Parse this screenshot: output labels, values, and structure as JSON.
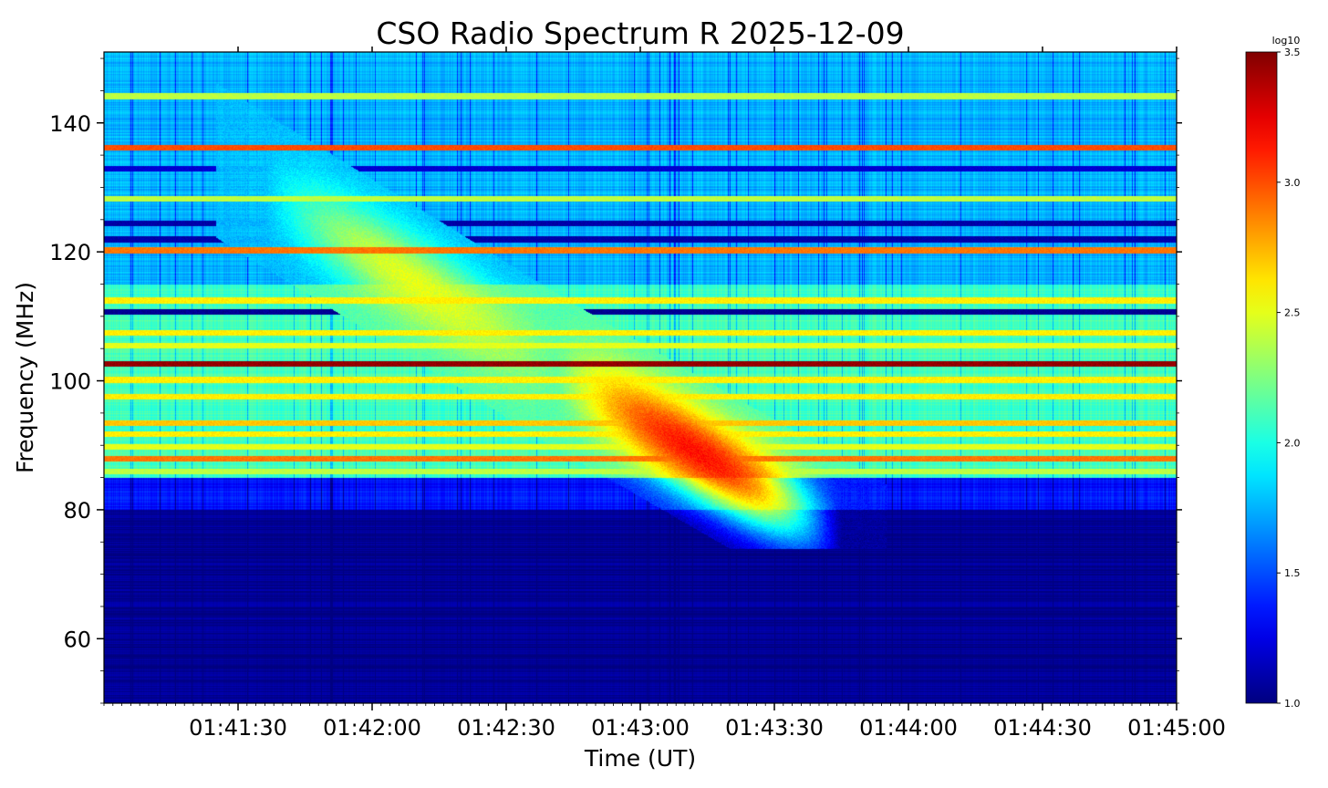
{
  "chart_data": {
    "type": "heatmap",
    "title": "CSO Radio Spectrum R 2025-12-09",
    "xlabel": "Time (UT)",
    "ylabel": "Frequency (MHz)",
    "x_tick_labels": [
      "01:41:30",
      "01:42:00",
      "01:42:30",
      "01:43:00",
      "01:43:30",
      "01:44:00",
      "01:44:30",
      "01:45:00"
    ],
    "x_range": [
      "01:41:00",
      "01:45:00"
    ],
    "y_ticks": [
      60,
      80,
      100,
      120,
      140
    ],
    "y_range": [
      50,
      151
    ],
    "colormap": "jet",
    "colorbar": {
      "label": "log10",
      "range": [
        1.0,
        3.5
      ],
      "ticks": [
        "1.0",
        "1.5",
        "2.0",
        "2.5",
        "3.0",
        "3.5"
      ]
    },
    "z_background": {
      "description_units": "log10 intensity",
      "below_80MHz": 1.05,
      "band_80_85MHz": 1.35,
      "band_85_115MHz": 2.1,
      "band_115_151MHz": 1.75
    },
    "rfi_lines_mhz": [
      {
        "freq": 102.7,
        "z": 3.45
      },
      {
        "freq": 136.2,
        "z": 3.0
      },
      {
        "freq": 120.3,
        "z": 2.9
      },
      {
        "freq": 88.0,
        "z": 2.9
      },
      {
        "freq": 144.2,
        "z": 2.4
      },
      {
        "freq": 128.3,
        "z": 2.4
      },
      {
        "freq": 112.5,
        "z": 2.6
      },
      {
        "freq": 107.5,
        "z": 2.6
      },
      {
        "freq": 105.5,
        "z": 2.5
      },
      {
        "freq": 100.2,
        "z": 2.6
      },
      {
        "freq": 97.6,
        "z": 2.6
      },
      {
        "freq": 93.5,
        "z": 2.7
      },
      {
        "freq": 91.8,
        "z": 2.6
      },
      {
        "freq": 89.8,
        "z": 2.5
      },
      {
        "freq": 86.0,
        "z": 2.4
      },
      {
        "freq": 110.8,
        "z": 1.05
      },
      {
        "freq": 124.5,
        "z": 1.1
      },
      {
        "freq": 122.0,
        "z": 1.1
      },
      {
        "freq": 133.0,
        "z": 1.2
      }
    ],
    "bursts": [
      {
        "t_start": "01:41:35",
        "t_end": "01:42:45",
        "f_high": 130,
        "f_low": 100,
        "z_peak": 2.5
      },
      {
        "t_start": "01:42:40",
        "t_end": "01:43:45",
        "f_high": 102,
        "f_low": 76,
        "z_peak": 3.15
      }
    ]
  }
}
